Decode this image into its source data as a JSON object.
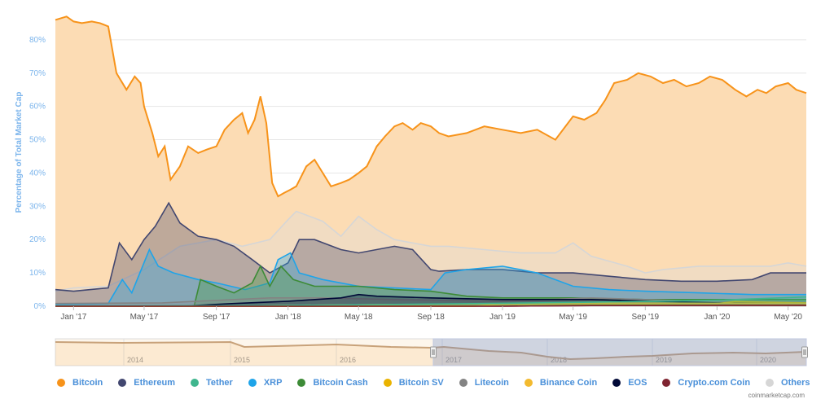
{
  "chart_data": {
    "type": "area",
    "ylabel": "Percentage of Total Market Cap",
    "y_ticks": [
      "0%",
      "10%",
      "20%",
      "30%",
      "40%",
      "50%",
      "60%",
      "70%",
      "80%"
    ],
    "ylim": [
      0,
      90
    ],
    "x_ticks": [
      "Jan '17",
      "May '17",
      "Sep '17",
      "Jan '18",
      "May '18",
      "Sep '18",
      "Jan '19",
      "May '19",
      "Sep '19",
      "Jan '20",
      "May '20"
    ],
    "x_tick_dates": [
      "2017-01-01",
      "2017-05-01",
      "2017-09-01",
      "2018-01-01",
      "2018-05-01",
      "2018-09-01",
      "2019-01-01",
      "2019-05-01",
      "2019-09-01",
      "2020-01-01",
      "2020-05-01"
    ],
    "xlim": [
      "2016-12-01",
      "2020-06-01"
    ],
    "grid": true,
    "series": [
      {
        "name": "Others",
        "color": "#d6d6d6",
        "fill": "#dedede",
        "x": [
          "2016-12-01",
          "2017-01-01",
          "2017-03-01",
          "2017-05-01",
          "2017-07-01",
          "2017-09-01",
          "2017-10-15",
          "2017-12-01",
          "2018-01-01",
          "2018-01-15",
          "2018-03-01",
          "2018-04-01",
          "2018-05-01",
          "2018-06-01",
          "2018-07-01",
          "2018-08-01",
          "2018-09-01",
          "2018-10-01",
          "2018-12-01",
          "2019-02-01",
          "2019-04-01",
          "2019-05-01",
          "2019-06-01",
          "2019-08-01",
          "2019-09-01",
          "2019-10-01",
          "2019-12-01",
          "2020-02-01",
          "2020-04-01",
          "2020-05-01",
          "2020-06-01"
        ],
        "y": [
          4.5,
          5.5,
          6,
          11,
          18,
          20,
          18,
          20,
          26,
          28.5,
          25.5,
          21,
          27,
          23,
          20,
          19,
          18,
          18,
          17,
          16,
          16,
          19,
          15,
          12,
          10,
          11,
          12,
          12,
          12,
          13,
          12
        ]
      },
      {
        "name": "Ethereum",
        "color": "#424770",
        "fill": "#4a4a6a",
        "x": [
          "2016-12-01",
          "2017-01-01",
          "2017-03-01",
          "2017-03-20",
          "2017-04-10",
          "2017-05-01",
          "2017-05-20",
          "2017-06-12",
          "2017-07-01",
          "2017-08-01",
          "2017-09-01",
          "2017-10-01",
          "2017-11-01",
          "2017-12-01",
          "2018-01-01",
          "2018-01-20",
          "2018-02-15",
          "2018-04-01",
          "2018-05-01",
          "2018-07-01",
          "2018-08-01",
          "2018-09-01",
          "2018-09-15",
          "2018-11-01",
          "2019-01-01",
          "2019-03-01",
          "2019-05-01",
          "2019-07-01",
          "2019-09-01",
          "2019-11-01",
          "2020-01-01",
          "2020-03-01",
          "2020-04-01",
          "2020-06-01"
        ],
        "y": [
          5,
          4.5,
          5.5,
          19,
          14,
          20,
          24,
          31,
          25,
          21,
          20,
          18,
          14,
          10,
          13,
          20,
          20,
          17,
          16,
          18,
          17,
          11,
          10.5,
          11,
          11,
          10,
          10,
          9,
          8,
          7.5,
          7.5,
          8,
          10,
          10
        ]
      },
      {
        "name": "XRP",
        "color": "#1ea4e9",
        "fill": "#2da5e0",
        "x": [
          "2016-12-01",
          "2017-03-01",
          "2017-03-25",
          "2017-04-10",
          "2017-05-10",
          "2017-05-25",
          "2017-06-20",
          "2017-08-01",
          "2017-09-01",
          "2017-10-20",
          "2017-12-01",
          "2017-12-15",
          "2018-01-05",
          "2018-01-20",
          "2018-03-01",
          "2018-05-01",
          "2018-07-01",
          "2018-09-01",
          "2018-09-25",
          "2018-11-01",
          "2019-01-01",
          "2019-03-01",
          "2019-05-01",
          "2019-07-01",
          "2019-09-01",
          "2019-12-01",
          "2020-03-01",
          "2020-06-01"
        ],
        "y": [
          0.5,
          0.8,
          8,
          4,
          17,
          12,
          10,
          8,
          7,
          5,
          7,
          14,
          16,
          10,
          8,
          6,
          5.5,
          5,
          10,
          11,
          12,
          10,
          6,
          5,
          4.5,
          4,
          3.5,
          3.5
        ]
      },
      {
        "name": "Bitcoin Cash",
        "color": "#3d8b37",
        "fill": "#4b9e44",
        "x": [
          "2016-12-01",
          "2017-07-25",
          "2017-08-05",
          "2017-09-01",
          "2017-10-01",
          "2017-11-01",
          "2017-11-15",
          "2017-12-01",
          "2017-12-20",
          "2018-01-10",
          "2018-02-15",
          "2018-05-01",
          "2018-07-01",
          "2018-09-01",
          "2018-11-01",
          "2019-01-01",
          "2019-05-01",
          "2019-09-01",
          "2020-01-01",
          "2020-06-01"
        ],
        "y": [
          0,
          0,
          8,
          6,
          4,
          7,
          12,
          6,
          12,
          8,
          6,
          6,
          5,
          4.5,
          3,
          2.5,
          2.5,
          2,
          2,
          2
        ]
      },
      {
        "name": "Litecoin",
        "color": "#838383",
        "fill": "#8a8a8a",
        "x": [
          "2016-12-01",
          "2017-06-01",
          "2017-12-01",
          "2018-03-01",
          "2018-07-01",
          "2019-01-01",
          "2019-06-01",
          "2019-12-01",
          "2020-06-01"
        ],
        "y": [
          0.8,
          1,
          2.5,
          2.5,
          2,
          1.5,
          2.5,
          1.5,
          1.2
        ]
      },
      {
        "name": "EOS",
        "color": "#000937",
        "fill": "#10163a",
        "x": [
          "2016-12-01",
          "2017-07-01",
          "2017-10-01",
          "2018-01-01",
          "2018-04-01",
          "2018-05-01",
          "2018-06-01",
          "2018-09-01",
          "2019-01-01",
          "2019-06-01",
          "2020-01-01",
          "2020-06-01"
        ],
        "y": [
          0,
          0,
          0.8,
          1.5,
          2.5,
          3.5,
          3,
          2.5,
          2,
          2,
          1,
          0.8
        ]
      },
      {
        "name": "Bitcoin SV",
        "color": "#eab300",
        "fill": "#eab300",
        "x": [
          "2016-12-01",
          "2018-11-15",
          "2019-01-01",
          "2019-06-01",
          "2020-01-01",
          "2020-02-01",
          "2020-06-01"
        ],
        "y": [
          0,
          0,
          0.6,
          0.7,
          0.8,
          1.4,
          1
        ]
      },
      {
        "name": "Binance Coin",
        "color": "#f3ba2f",
        "fill": "#f3ba2f",
        "x": [
          "2016-12-01",
          "2017-08-01",
          "2018-06-01",
          "2019-01-01",
          "2019-06-01",
          "2020-06-01"
        ],
        "y": [
          0,
          0,
          0.5,
          0.6,
          1,
          0.8
        ]
      },
      {
        "name": "Tether",
        "color": "#3fb68e",
        "fill": "#3fb68e",
        "x": [
          "2016-12-01",
          "2017-12-01",
          "2018-06-01",
          "2018-12-01",
          "2019-06-01",
          "2020-01-01",
          "2020-06-01"
        ],
        "y": [
          0.1,
          0.2,
          0.5,
          0.8,
          1.2,
          1.8,
          2.8
        ]
      },
      {
        "name": "Crypto.com Coin",
        "color": "#7f2431",
        "fill": "#7f2431",
        "x": [
          "2016-12-01",
          "2019-01-01",
          "2019-06-01",
          "2020-06-01"
        ],
        "y": [
          0,
          0,
          0.2,
          0.3
        ]
      },
      {
        "name": "Bitcoin",
        "color": "#f7931a",
        "fill": "#fcdcb4",
        "x": [
          "2016-12-01",
          "2016-12-20",
          "2017-01-01",
          "2017-01-15",
          "2017-02-01",
          "2017-02-15",
          "2017-03-01",
          "2017-03-15",
          "2017-04-01",
          "2017-04-15",
          "2017-04-25",
          "2017-05-01",
          "2017-05-15",
          "2017-05-25",
          "2017-06-05",
          "2017-06-15",
          "2017-07-01",
          "2017-07-15",
          "2017-08-01",
          "2017-08-15",
          "2017-09-01",
          "2017-09-15",
          "2017-10-01",
          "2017-10-15",
          "2017-10-25",
          "2017-11-05",
          "2017-11-15",
          "2017-11-25",
          "2017-12-05",
          "2017-12-15",
          "2017-12-25",
          "2018-01-05",
          "2018-01-15",
          "2018-02-01",
          "2018-02-15",
          "2018-03-01",
          "2018-03-15",
          "2018-04-01",
          "2018-04-15",
          "2018-05-01",
          "2018-05-15",
          "2018-06-01",
          "2018-06-15",
          "2018-07-01",
          "2018-07-15",
          "2018-08-01",
          "2018-08-15",
          "2018-09-01",
          "2018-09-15",
          "2018-10-01",
          "2018-11-01",
          "2018-12-01",
          "2019-01-01",
          "2019-02-01",
          "2019-03-01",
          "2019-04-01",
          "2019-05-01",
          "2019-05-20",
          "2019-06-10",
          "2019-06-25",
          "2019-07-10",
          "2019-08-01",
          "2019-08-20",
          "2019-09-10",
          "2019-10-01",
          "2019-10-20",
          "2019-11-10",
          "2019-12-01",
          "2019-12-20",
          "2020-01-10",
          "2020-02-01",
          "2020-02-20",
          "2020-03-10",
          "2020-03-25",
          "2020-04-10",
          "2020-05-01",
          "2020-05-15",
          "2020-06-01"
        ],
        "y": [
          86,
          87,
          85.5,
          85,
          85.5,
          85,
          84,
          70,
          65,
          69,
          67,
          60,
          52,
          45,
          48,
          38,
          42,
          48,
          46,
          47,
          48,
          53,
          56,
          58,
          52,
          56,
          63,
          55,
          37,
          33,
          34,
          35,
          36,
          42,
          44,
          40,
          36,
          37,
          38,
          40,
          42,
          48,
          51,
          54,
          55,
          53,
          55,
          54,
          52,
          51,
          52,
          54,
          53,
          52,
          53,
          50,
          57,
          56,
          58,
          62,
          67,
          68,
          70,
          69,
          67,
          68,
          66,
          67,
          69,
          68,
          65,
          63,
          65,
          64,
          66,
          67,
          65,
          64
        ]
      }
    ]
  },
  "navigator": {
    "year_labels": [
      "2014",
      "2015",
      "2016",
      "2017",
      "2018",
      "2019",
      "2020"
    ]
  },
  "legend": {
    "items": [
      {
        "label": "Bitcoin",
        "color": "#f7931a"
      },
      {
        "label": "Ethereum",
        "color": "#424770"
      },
      {
        "label": "Tether",
        "color": "#3fb68e"
      },
      {
        "label": "XRP",
        "color": "#1ea4e9"
      },
      {
        "label": "Bitcoin Cash",
        "color": "#3d8b37"
      },
      {
        "label": "Bitcoin SV",
        "color": "#eab300"
      },
      {
        "label": "Litecoin",
        "color": "#838383"
      },
      {
        "label": "Binance Coin",
        "color": "#f3ba2f"
      },
      {
        "label": "EOS",
        "color": "#000937"
      },
      {
        "label": "Crypto.com Coin",
        "color": "#7f2431"
      },
      {
        "label": "Others",
        "color": "#d6d6d6"
      }
    ]
  },
  "credit": "coinmarketcap.com"
}
